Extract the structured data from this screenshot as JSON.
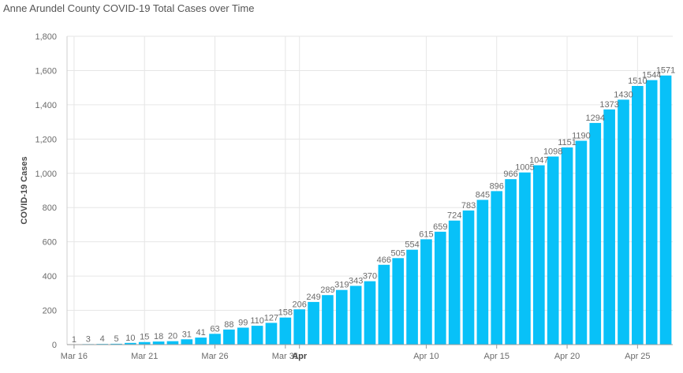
{
  "chart_data": {
    "type": "bar",
    "title": "Anne Arundel County COVID-19 Total Cases over Time",
    "ylabel": "COVID-19 Cases",
    "xlabel": "",
    "ylim": [
      0,
      1800
    ],
    "y_ticks": [
      0,
      200,
      400,
      600,
      800,
      1000,
      1200,
      1400,
      1600,
      1800
    ],
    "y_tick_labels": [
      "0",
      "200",
      "400",
      "600",
      "800",
      "1,000",
      "1,200",
      "1,400",
      "1,600",
      "1,800"
    ],
    "x_ticks": [
      {
        "index": 0,
        "label": "Mar 16",
        "bold": false
      },
      {
        "index": 5,
        "label": "Mar 21",
        "bold": false
      },
      {
        "index": 10,
        "label": "Mar 26",
        "bold": false
      },
      {
        "index": 15,
        "label": "Mar 31",
        "bold": false
      },
      {
        "index": 16,
        "label": "Apr",
        "bold": true
      },
      {
        "index": 25,
        "label": "Apr 10",
        "bold": false
      },
      {
        "index": 30,
        "label": "Apr 15",
        "bold": false
      },
      {
        "index": 35,
        "label": "Apr 20",
        "bold": false
      },
      {
        "index": 40,
        "label": "Apr 25",
        "bold": false
      }
    ],
    "values": [
      1,
      3,
      4,
      5,
      10,
      15,
      18,
      20,
      31,
      41,
      63,
      88,
      99,
      110,
      127,
      158,
      206,
      249,
      289,
      319,
      343,
      370,
      466,
      505,
      554,
      615,
      659,
      724,
      783,
      845,
      896,
      966,
      1005,
      1047,
      1098,
      1151,
      1190,
      1294,
      1373,
      1430,
      1510,
      1544,
      1571
    ],
    "grid": true,
    "bar_color": "#08c1f8",
    "grid_color": "#e6e6e6"
  }
}
